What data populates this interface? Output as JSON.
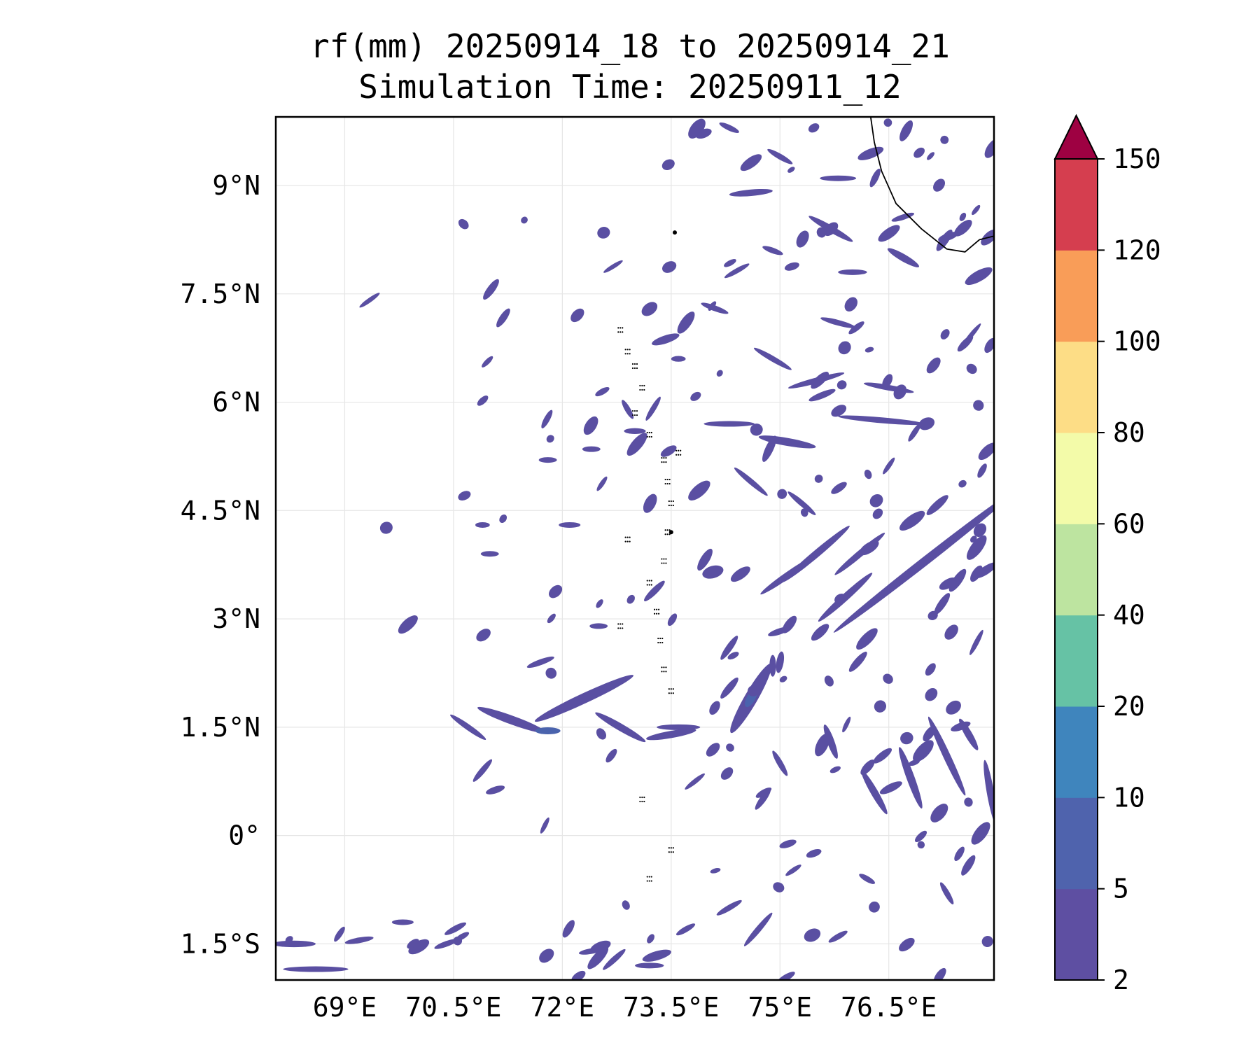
{
  "title": "rf(mm) 20250914_18 to 20250914_21",
  "subtitle": "Simulation Time: 20250911_12",
  "map": {
    "lon_range": [
      68.05,
      77.95
    ],
    "lat_range": [
      -2.0,
      9.95
    ],
    "lon_ticks": [
      69,
      70.5,
      72,
      73.5,
      75,
      76.5
    ],
    "lon_tick_labels": [
      "69°E",
      "70.5°E",
      "72°E",
      "73.5°E",
      "75°E",
      "76.5°E"
    ],
    "lat_ticks": [
      9,
      7.5,
      6,
      4.5,
      3,
      1.5,
      0,
      -1.5
    ],
    "lat_tick_labels": [
      "9°N",
      "7.5°N",
      "6°N",
      "4.5°N",
      "3°N",
      "1.5°N",
      "0°",
      "1.5°S"
    ],
    "grid": true,
    "fill_color": "#5a4fa2",
    "fill_color_heavy": "#4a63ad",
    "coastline_color": "#000000",
    "rain_cells": [
      {
        "lon": 77.0,
        "lat": 3.8,
        "angle": 38,
        "len": 3.2,
        "wid": 0.12
      },
      {
        "lon": 75.5,
        "lat": 3.9,
        "angle": 40,
        "len": 1.2,
        "wid": 0.1
      },
      {
        "lon": 75.9,
        "lat": 3.3,
        "angle": 42,
        "len": 1.0,
        "wid": 0.1
      },
      {
        "lon": 75.1,
        "lat": 3.6,
        "angle": 35,
        "len": 0.9,
        "wid": 0.09
      },
      {
        "lon": 76.1,
        "lat": 3.9,
        "angle": 40,
        "len": 0.9,
        "wid": 0.09
      },
      {
        "lon": 74.6,
        "lat": 1.9,
        "angle": 60,
        "len": 1.1,
        "wid": 0.18
      },
      {
        "lon": 74.3,
        "lat": 2.6,
        "angle": 55,
        "len": 0.4,
        "wid": 0.09
      },
      {
        "lon": 75.0,
        "lat": 2.4,
        "angle": 80,
        "len": 0.3,
        "wid": 0.1
      },
      {
        "lon": 72.3,
        "lat": 1.9,
        "angle": 25,
        "len": 1.5,
        "wid": 0.14
      },
      {
        "lon": 71.3,
        "lat": 1.6,
        "angle": -20,
        "len": 1.0,
        "wid": 0.12
      },
      {
        "lon": 72.8,
        "lat": 1.5,
        "angle": -30,
        "len": 0.8,
        "wid": 0.1
      },
      {
        "lon": 73.5,
        "lat": 1.4,
        "angle": 10,
        "len": 0.7,
        "wid": 0.1
      },
      {
        "lon": 70.7,
        "lat": 1.5,
        "angle": -35,
        "len": 0.6,
        "wid": 0.08
      },
      {
        "lon": 71.7,
        "lat": 2.4,
        "angle": 20,
        "len": 0.4,
        "wid": 0.08
      },
      {
        "lon": 70.9,
        "lat": 0.9,
        "angle": 50,
        "len": 0.4,
        "wid": 0.08
      },
      {
        "lon": 76.8,
        "lat": 0.8,
        "angle": -70,
        "len": 0.9,
        "wid": 0.11
      },
      {
        "lon": 77.3,
        "lat": 1.1,
        "angle": -65,
        "len": 1.2,
        "wid": 0.1
      },
      {
        "lon": 77.9,
        "lat": 0.6,
        "angle": -80,
        "len": 0.9,
        "wid": 0.1
      },
      {
        "lon": 76.3,
        "lat": 0.6,
        "angle": -60,
        "len": 0.7,
        "wid": 0.1
      },
      {
        "lon": 75.7,
        "lat": 1.3,
        "angle": -70,
        "len": 0.5,
        "wid": 0.1
      },
      {
        "lon": 77.6,
        "lat": 1.4,
        "angle": -60,
        "len": 0.5,
        "wid": 0.1
      },
      {
        "lon": 75.0,
        "lat": 1.0,
        "angle": -60,
        "len": 0.4,
        "wid": 0.08
      },
      {
        "lon": 75.1,
        "lat": 5.45,
        "angle": -10,
        "len": 0.8,
        "wid": 0.11
      },
      {
        "lon": 76.4,
        "lat": 5.75,
        "angle": -5,
        "len": 1.2,
        "wid": 0.08
      },
      {
        "lon": 75.5,
        "lat": 6.3,
        "angle": 15,
        "len": 0.8,
        "wid": 0.08
      },
      {
        "lon": 74.3,
        "lat": 5.7,
        "angle": 0,
        "len": 0.7,
        "wid": 0.06
      },
      {
        "lon": 76.5,
        "lat": 6.2,
        "angle": -10,
        "len": 0.7,
        "wid": 0.07
      },
      {
        "lon": 74.6,
        "lat": 4.9,
        "angle": -40,
        "len": 0.6,
        "wid": 0.07
      },
      {
        "lon": 75.3,
        "lat": 4.6,
        "angle": -40,
        "len": 0.5,
        "wid": 0.07
      },
      {
        "lon": 74.9,
        "lat": 6.6,
        "angle": -30,
        "len": 0.6,
        "wid": 0.07
      },
      {
        "lon": 74.1,
        "lat": 7.3,
        "angle": -20,
        "len": 0.4,
        "wid": 0.06
      },
      {
        "lon": 75.8,
        "lat": 7.1,
        "angle": -15,
        "len": 0.5,
        "wid": 0.06
      },
      {
        "lon": 74.6,
        "lat": 8.9,
        "angle": 5,
        "len": 0.6,
        "wid": 0.09
      },
      {
        "lon": 75.7,
        "lat": 8.4,
        "angle": -30,
        "len": 0.7,
        "wid": 0.09
      },
      {
        "lon": 76.7,
        "lat": 8.0,
        "angle": -30,
        "len": 0.5,
        "wid": 0.1
      },
      {
        "lon": 75.0,
        "lat": 9.4,
        "angle": -30,
        "len": 0.4,
        "wid": 0.07
      },
      {
        "lon": 74.3,
        "lat": 9.8,
        "angle": -25,
        "len": 0.3,
        "wid": 0.05
      },
      {
        "lon": 75.8,
        "lat": 9.1,
        "angle": 0,
        "len": 0.5,
        "wid": 0.06
      },
      {
        "lon": 74.9,
        "lat": 8.1,
        "angle": -20,
        "len": 0.3,
        "wid": 0.05
      },
      {
        "lon": 76.0,
        "lat": 7.8,
        "angle": 0,
        "len": 0.4,
        "wid": 0.05
      },
      {
        "lon": 73.0,
        "lat": 5.6,
        "angle": 0,
        "len": 0.3,
        "wid": 0.08
      },
      {
        "lon": 72.9,
        "lat": 5.9,
        "angle": -60,
        "len": 0.3,
        "wid": 0.07
      },
      {
        "lon": 73.6,
        "lat": 6.6,
        "angle": 0,
        "len": 0.2,
        "wid": 0.08
      },
      {
        "lon": 71.8,
        "lat": 5.2,
        "angle": 0,
        "len": 0.25,
        "wid": 0.05
      },
      {
        "lon": 72.4,
        "lat": 5.35,
        "angle": 0,
        "len": 0.25,
        "wid": 0.05
      },
      {
        "lon": 71.0,
        "lat": 3.9,
        "angle": 0,
        "len": 0.25,
        "wid": 0.05
      },
      {
        "lon": 70.9,
        "lat": 4.3,
        "angle": 0,
        "len": 0.2,
        "wid": 0.04
      },
      {
        "lon": 72.1,
        "lat": 4.3,
        "angle": 0,
        "len": 0.3,
        "wid": 0.05
      },
      {
        "lon": 72.5,
        "lat": 2.9,
        "angle": 0,
        "len": 0.25,
        "wid": 0.05
      },
      {
        "lon": 73.6,
        "lat": 1.5,
        "angle": 0,
        "len": 0.6,
        "wid": 0.07
      },
      {
        "lon": 74.9,
        "lat": 2.35,
        "angle": 90,
        "len": 0.3,
        "wid": 0.09
      },
      {
        "lon": 68.3,
        "lat": -1.5,
        "angle": 0,
        "len": 0.6,
        "wid": 0.09
      },
      {
        "lon": 68.6,
        "lat": -1.85,
        "angle": 0,
        "len": 0.9,
        "wid": 0.07
      },
      {
        "lon": 69.2,
        "lat": -1.45,
        "angle": 10,
        "len": 0.4,
        "wid": 0.06
      },
      {
        "lon": 69.8,
        "lat": -1.2,
        "angle": 0,
        "len": 0.3,
        "wid": 0.05
      },
      {
        "lon": 70.4,
        "lat": -1.5,
        "angle": 20,
        "len": 0.35,
        "wid": 0.05
      },
      {
        "lon": 74.7,
        "lat": -1.3,
        "angle": 50,
        "len": 0.6,
        "wid": 0.08
      },
      {
        "lon": 74.3,
        "lat": -1.0,
        "angle": 30,
        "len": 0.4,
        "wid": 0.07
      },
      {
        "lon": 73.2,
        "lat": -1.8,
        "angle": 0,
        "len": 0.4,
        "wid": 0.07
      },
      {
        "lon": 72.4,
        "lat": -1.6,
        "angle": 10,
        "len": 0.35,
        "wid": 0.06
      },
      {
        "lon": 76.2,
        "lat": -0.6,
        "angle": -30,
        "len": 0.25,
        "wid": 0.07
      },
      {
        "lon": 77.3,
        "lat": -0.8,
        "angle": -60,
        "len": 0.35,
        "wid": 0.06
      },
      {
        "lon": 75.8,
        "lat": -1.4,
        "angle": 30,
        "len": 0.3,
        "wid": 0.05
      },
      {
        "lon": 73.7,
        "lat": -1.3,
        "angle": 30,
        "len": 0.3,
        "wid": 0.05
      }
    ],
    "scatter_seeds": 620
  },
  "colorbar": {
    "levels": [
      2,
      5,
      10,
      20,
      40,
      60,
      80,
      100,
      120,
      150
    ],
    "tick_labels": [
      "2",
      "5",
      "10",
      "20",
      "40",
      "60",
      "80",
      "100",
      "120",
      "150"
    ],
    "colors": [
      "#5e4fa2",
      "#4f63ad",
      "#3f85bd",
      "#66c2a5",
      "#bde4a0",
      "#f3fba9",
      "#fddd86",
      "#f99d58",
      "#d53e4f"
    ],
    "extend_color": "#9e0142",
    "extend": "max"
  }
}
